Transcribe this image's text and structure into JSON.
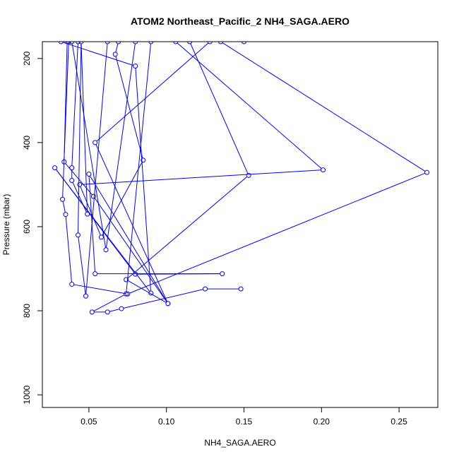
{
  "chart_data": {
    "type": "line",
    "title": "ATOM2 Northeast_Pacific_2 NH4_SAGA.AERO",
    "xlabel": "NH4_SAGA.AERO",
    "ylabel": "Pressure (mbar)",
    "xlim": [
      0.02,
      0.275
    ],
    "ylim": [
      1030,
      160
    ],
    "y_reversed": true,
    "x_ticks": [
      0.05,
      0.1,
      0.15,
      0.2,
      0.25
    ],
    "x_tick_labels": [
      "0.05",
      "0.10",
      "0.15",
      "0.20",
      "0.25"
    ],
    "y_ticks": [
      200,
      400,
      600,
      800,
      1000
    ],
    "y_tick_labels": [
      "200",
      "400",
      "600",
      "800",
      "1000"
    ],
    "series_color": "#0000ff",
    "series": [
      {
        "x": [
          0.09,
          0.074,
          0.052,
          0.062,
          0.071,
          0.125,
          0.148
        ],
        "y": [
          160,
          760,
          803,
          803,
          795,
          748,
          748
        ]
      },
      {
        "x": [
          0.128,
          0.054,
          0.101,
          0.05,
          0.054,
          0.136,
          0.08,
          0.028,
          0.09,
          0.08,
          0.032
        ],
        "y": [
          160,
          400,
          783,
          475,
          712,
          712,
          713,
          460,
          758,
          218,
          160
        ]
      },
      {
        "x": [
          0.106,
          0.201,
          0.044,
          0.058,
          0.085,
          0.067,
          0.069
        ],
        "y": [
          160,
          465,
          500,
          625,
          442,
          190,
          160
        ]
      },
      {
        "x": [
          0.115,
          0.153,
          0.074,
          0.101,
          0.053,
          0.034,
          0.036
        ],
        "y": [
          160,
          478,
          726,
          783,
          528,
          446,
          160
        ]
      },
      {
        "x": [
          0.039,
          0.061,
          0.08,
          0.15
        ],
        "y": [
          160,
          655,
          160,
          160
        ]
      },
      {
        "x": [
          0.135,
          0.268,
          0.075,
          0.039,
          0.035,
          0.033,
          0.037
        ],
        "y": [
          160,
          471,
          760,
          737,
          571,
          535,
          160
        ]
      },
      {
        "x": [
          0.062,
          0.048,
          0.043,
          0.045,
          0.049,
          0.039,
          0.039,
          0.043
        ],
        "y": [
          160,
          765,
          620,
          160,
          570,
          490,
          460,
          160
        ]
      }
    ]
  }
}
